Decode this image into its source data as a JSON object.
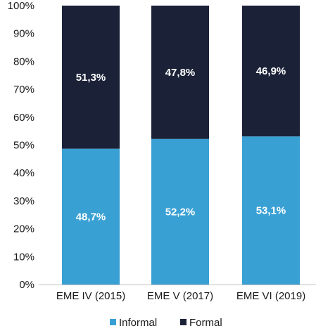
{
  "chart_data": {
    "type": "bar",
    "stacked": true,
    "categories": [
      "EME IV (2015)",
      "EME V (2017)",
      "EME VI (2019)"
    ],
    "series": [
      {
        "name": "Informal",
        "values": [
          48.7,
          52.2,
          53.1
        ],
        "labels": [
          "48,7%",
          "52,2%",
          "53,1%"
        ],
        "color": "#39a0d4"
      },
      {
        "name": "Formal",
        "values": [
          51.3,
          47.8,
          46.9
        ],
        "labels": [
          "51,3%",
          "47,8%",
          "46,9%"
        ],
        "color": "#1b2238"
      }
    ],
    "ylim": [
      0,
      100
    ],
    "yticks": [
      0,
      10,
      20,
      30,
      40,
      50,
      60,
      70,
      80,
      90,
      100
    ],
    "ytick_labels": [
      "0%",
      "10%",
      "20%",
      "30%",
      "40%",
      "50%",
      "60%",
      "70%",
      "80%",
      "90%",
      "100%"
    ],
    "grid": false,
    "legend_position": "bottom-center",
    "title": "",
    "xlabel": "",
    "ylabel": ""
  }
}
